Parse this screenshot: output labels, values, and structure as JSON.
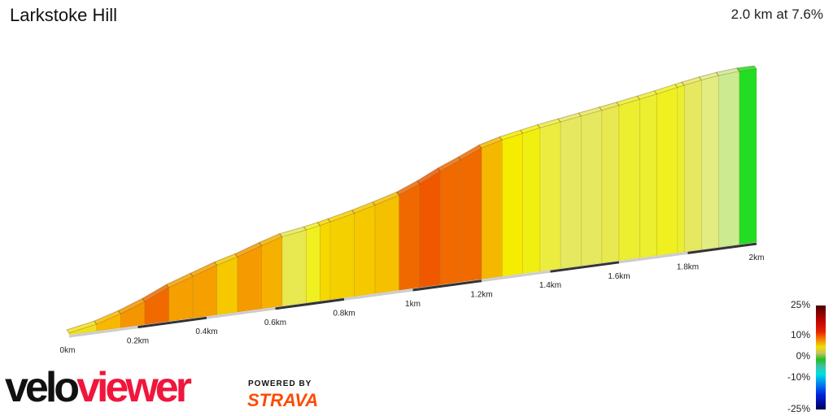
{
  "header": {
    "title": "Larkstoke Hill",
    "summary": "2.0 km at 7.6%"
  },
  "chart_data": {
    "type": "area",
    "xlabel": "",
    "ylabel": "",
    "distance_boundaries_km": [
      0,
      0.08,
      0.15,
      0.22,
      0.29,
      0.36,
      0.43,
      0.49,
      0.56,
      0.62,
      0.69,
      0.73,
      0.76,
      0.83,
      0.89,
      0.96,
      1.02,
      1.08,
      1.14,
      1.2,
      1.26,
      1.32,
      1.37,
      1.43,
      1.49,
      1.55,
      1.6,
      1.66,
      1.71,
      1.77,
      1.79,
      1.84,
      1.89,
      1.95,
      2.0
    ],
    "gradients_pct": [
      5,
      8,
      10,
      12,
      9,
      9,
      7,
      9,
      8,
      4,
      5,
      6,
      6,
      7,
      7.5,
      11,
      13,
      11,
      12,
      7,
      5,
      5,
      4,
      4,
      4,
      4,
      4.5,
      4.5,
      5,
      4.5,
      4.5,
      3.5,
      2,
      0
    ],
    "colors": [
      "#f0e020",
      "#f8b800",
      "#f59500",
      "#f06a00",
      "#f5a000",
      "#f5a000",
      "#f5c800",
      "#f59a00",
      "#f5b000",
      "#e8e850",
      "#f0f020",
      "#f5d800",
      "#f5d000",
      "#f5c800",
      "#f5c000",
      "#f06800",
      "#f05800",
      "#f06a00",
      "#f06a00",
      "#f5b800",
      "#f5ec00",
      "#f0f010",
      "#ecec40",
      "#e6e860",
      "#e6e860",
      "#e8e850",
      "#ecee30",
      "#ecee30",
      "#f0f020",
      "#ecee30",
      "#e6e860",
      "#e2ec80",
      "#cceb90",
      "#22dd22"
    ],
    "x_ticks": [
      "0km",
      "0.2km",
      "0.4km",
      "0.6km",
      "0.8km",
      "1km",
      "1.2km",
      "1.4km",
      "1.6km",
      "1.8km",
      "2km"
    ],
    "x_range_km": [
      0,
      2
    ],
    "legend": {
      "title": "",
      "labels": [
        "25%",
        "10%",
        "0%",
        "-10%",
        "-25%"
      ]
    }
  },
  "branding": {
    "velo": "velo",
    "viewer": "viewer",
    "powered_by": "POWERED BY",
    "strava": "STRAVA"
  }
}
